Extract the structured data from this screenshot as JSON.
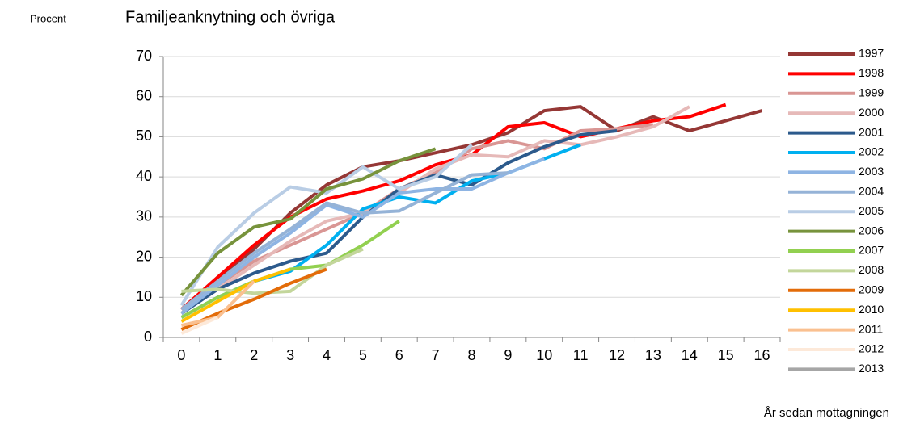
{
  "chart_data": {
    "type": "line",
    "title": "Familjeanknytning och övriga",
    "y_label": "Procent",
    "x_label": "År sedan mottagningen",
    "categories": [
      "0",
      "1",
      "2",
      "3",
      "4",
      "5",
      "6",
      "7",
      "8",
      "9",
      "10",
      "11",
      "12",
      "13",
      "14",
      "15",
      "16"
    ],
    "ylim": [
      0,
      70
    ],
    "yticks": [
      0,
      10,
      20,
      30,
      40,
      50,
      60,
      70
    ],
    "grid": true,
    "legend": "right",
    "series": [
      {
        "name": "1997",
        "color": "#953735",
        "values": [
          7,
          15,
          22,
          31,
          38,
          42.5,
          44,
          46,
          48,
          51,
          56.5,
          57.5,
          51.5,
          55,
          51.5,
          54,
          56.5
        ]
      },
      {
        "name": "1998",
        "color": "#ff0000",
        "values": [
          7,
          15,
          23,
          30,
          34.5,
          36.5,
          39,
          43,
          45.5,
          52.5,
          53.5,
          50,
          52,
          54,
          55,
          58,
          null
        ]
      },
      {
        "name": "1999",
        "color": "#d99694",
        "values": [
          6,
          13,
          19,
          23,
          27,
          31,
          37,
          41,
          47,
          49,
          47,
          51.5,
          52,
          53,
          null,
          null,
          null
        ]
      },
      {
        "name": "2000",
        "color": "#e6b9b8",
        "values": [
          6,
          12,
          18,
          24,
          29,
          31,
          36,
          42,
          45.5,
          45,
          49,
          48,
          50,
          52.5,
          57.5,
          null,
          null
        ]
      },
      {
        "name": "2001",
        "color": "#2c5a8c",
        "values": [
          6,
          12,
          16,
          19,
          21,
          30,
          37,
          40.5,
          38,
          43.5,
          47.5,
          50.5,
          51.5,
          null,
          null,
          null,
          null
        ]
      },
      {
        "name": "2002",
        "color": "#00b0f0",
        "values": [
          5,
          10,
          14,
          16.5,
          23,
          32,
          35,
          33.5,
          39,
          41,
          44.5,
          48,
          null,
          null,
          null,
          null,
          null
        ]
      },
      {
        "name": "2003",
        "color": "#8eb4e3",
        "values": [
          6,
          13,
          20,
          26,
          33,
          30,
          36,
          37,
          37,
          41,
          44.5,
          null,
          null,
          null,
          null,
          null,
          null
        ]
      },
      {
        "name": "2004",
        "color": "#95b3d7",
        "values": [
          7,
          14,
          21,
          27,
          33.5,
          31,
          31.5,
          36,
          40.5,
          41,
          null,
          null,
          null,
          null,
          null,
          null,
          null
        ]
      },
      {
        "name": "2005",
        "color": "#b9cde5",
        "values": [
          8,
          22.5,
          31,
          37.5,
          36,
          42.5,
          37,
          40,
          48,
          null,
          null,
          null,
          null,
          null,
          null,
          null,
          null
        ]
      },
      {
        "name": "2006",
        "color": "#77933c",
        "values": [
          10.5,
          21,
          27.5,
          29.5,
          37,
          39.5,
          44,
          47,
          null,
          null,
          null,
          null,
          null,
          null,
          null,
          null,
          null
        ]
      },
      {
        "name": "2007",
        "color": "#92d050",
        "values": [
          5,
          10,
          14,
          17,
          18,
          23,
          29,
          null,
          null,
          null,
          null,
          null,
          null,
          null,
          null,
          null,
          null
        ]
      },
      {
        "name": "2008",
        "color": "#c3d69b",
        "values": [
          11.5,
          12,
          11,
          11.5,
          18,
          22,
          null,
          null,
          null,
          null,
          null,
          null,
          null,
          null,
          null,
          null,
          null
        ]
      },
      {
        "name": "2009",
        "color": "#e36c09",
        "values": [
          2,
          6,
          9.5,
          13.5,
          17,
          null,
          null,
          null,
          null,
          null,
          null,
          null,
          null,
          null,
          null,
          null,
          null
        ]
      },
      {
        "name": "2010",
        "color": "#ffc000",
        "values": [
          4,
          9,
          14,
          17,
          null,
          null,
          null,
          null,
          null,
          null,
          null,
          null,
          null,
          null,
          null,
          null,
          null
        ]
      },
      {
        "name": "2011",
        "color": "#fac090",
        "values": [
          3,
          5,
          14,
          null,
          null,
          null,
          null,
          null,
          null,
          null,
          null,
          null,
          null,
          null,
          null,
          null,
          null
        ]
      },
      {
        "name": "2012",
        "color": "#fde9d9",
        "values": [
          1,
          5,
          null,
          null,
          null,
          null,
          null,
          null,
          null,
          null,
          null,
          null,
          null,
          null,
          null,
          null,
          null
        ]
      },
      {
        "name": "2013",
        "color": "#a6a6a6",
        "values": [
          3,
          null,
          null,
          null,
          null,
          null,
          null,
          null,
          null,
          null,
          null,
          null,
          null,
          null,
          null,
          null,
          null
        ]
      }
    ]
  }
}
